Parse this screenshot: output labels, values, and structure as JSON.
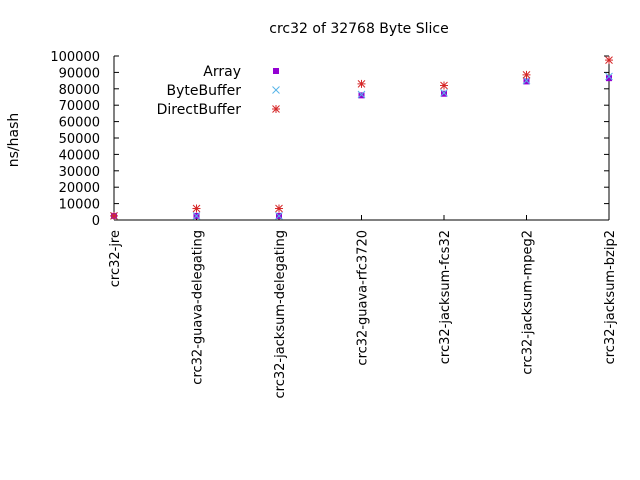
{
  "chart_data": {
    "type": "scatter",
    "title": "crc32 of 32768 Byte Slice",
    "xlabel": "",
    "ylabel": "ns/hash",
    "ylim": [
      0,
      100000
    ],
    "yticks": [
      0,
      10000,
      20000,
      30000,
      40000,
      50000,
      60000,
      70000,
      80000,
      90000,
      100000
    ],
    "grid": false,
    "legend": "top-left",
    "categories": [
      "crc32-jre",
      "crc32-guava-delegating",
      "crc32-jacksum-delegating",
      "crc32-guava-rfc3720",
      "crc32-jacksum-fcs32",
      "crc32-jacksum-mpeg2",
      "crc32-jacksum-bzip2"
    ],
    "series": [
      {
        "name": "Array",
        "marker": "square",
        "color": "#9400d3",
        "values": [
          2500,
          2500,
          2500,
          76000,
          77000,
          84500,
          86500
        ]
      },
      {
        "name": "ByteBuffer",
        "marker": "cross",
        "color": "#56b4e9",
        "values": [
          2500,
          2500,
          2500,
          76500,
          77500,
          85000,
          87500
        ]
      },
      {
        "name": "DirectBuffer",
        "marker": "star",
        "color": "#d62728",
        "values": [
          2500,
          7000,
          7000,
          83000,
          82000,
          88500,
          97500
        ]
      }
    ]
  }
}
